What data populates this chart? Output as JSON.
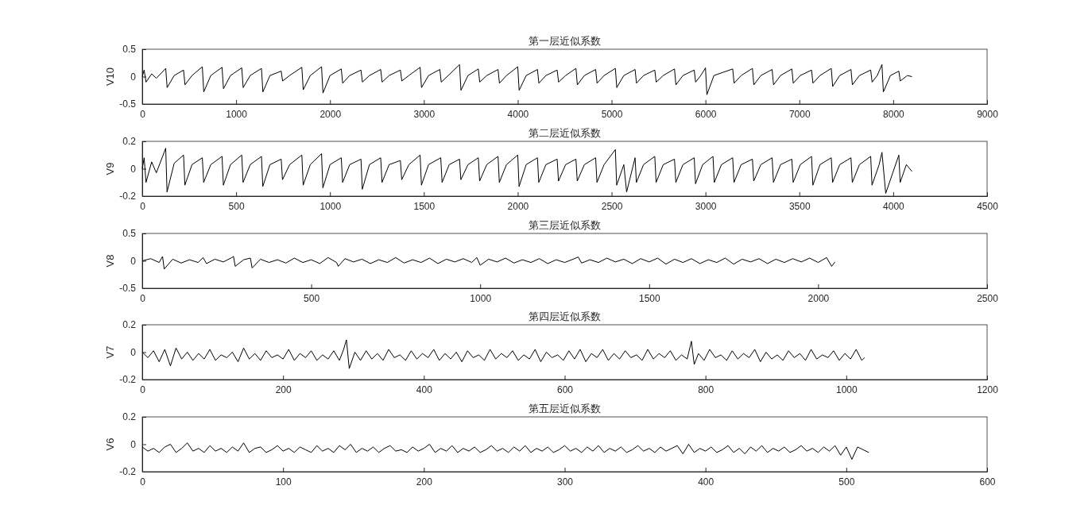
{
  "chart_data": [
    {
      "type": "line",
      "title": "第一层近似系数",
      "ylabel": "V10",
      "xlim": [
        0,
        9000
      ],
      "xticks": [
        0,
        1000,
        2000,
        3000,
        4000,
        5000,
        6000,
        7000,
        8000,
        9000
      ],
      "ylim": [
        -0.5,
        0.5
      ],
      "yticks": [
        -0.5,
        0,
        0.5
      ],
      "grid": false,
      "marker": "none",
      "line_style": "solid",
      "x": [
        0,
        20,
        40,
        100,
        150,
        250,
        265,
        340,
        440,
        455,
        530,
        640,
        655,
        730,
        850,
        865,
        940,
        1060,
        1075,
        1150,
        1270,
        1285,
        1360,
        1480,
        1495,
        1570,
        1700,
        1715,
        1790,
        1910,
        1925,
        2000,
        2120,
        2135,
        2210,
        2330,
        2345,
        2420,
        2540,
        2555,
        2630,
        2750,
        2765,
        2840,
        2960,
        2975,
        3050,
        3170,
        3185,
        3260,
        3380,
        3395,
        3470,
        3580,
        3595,
        3670,
        3790,
        3805,
        3880,
        4000,
        4015,
        4090,
        4210,
        4225,
        4300,
        4420,
        4435,
        4510,
        4620,
        4635,
        4710,
        4830,
        4845,
        4920,
        5040,
        5055,
        5130,
        5250,
        5265,
        5340,
        5460,
        5475,
        5550,
        5670,
        5685,
        5760,
        5880,
        5895,
        5950,
        6000,
        6015,
        6090,
        6290,
        6305,
        6380,
        6500,
        6515,
        6590,
        6710,
        6725,
        6800,
        6920,
        6935,
        7010,
        7130,
        7145,
        7220,
        7340,
        7355,
        7430,
        7550,
        7565,
        7640,
        7760,
        7775,
        7830,
        7880,
        7895,
        7970,
        8060,
        8075,
        8150,
        8200
      ],
      "series": [
        {
          "color": "#000000",
          "values": [
            0,
            0.12,
            -0.1,
            0.05,
            -0.03,
            0.15,
            -0.2,
            0.02,
            0.12,
            -0.15,
            0.02,
            0.18,
            -0.28,
            0.02,
            0.17,
            -0.22,
            0.02,
            0.16,
            -0.2,
            0.02,
            0.15,
            -0.28,
            0.02,
            0.1,
            -0.08,
            0.02,
            0.17,
            -0.24,
            0.02,
            0.18,
            -0.3,
            0.02,
            0.14,
            -0.12,
            0.02,
            0.12,
            -0.1,
            0.02,
            0.13,
            -0.1,
            0.02,
            0.12,
            -0.08,
            0.02,
            0.17,
            -0.2,
            0.02,
            0.13,
            -0.1,
            0.02,
            0.22,
            -0.25,
            0.02,
            0.14,
            -0.1,
            0.02,
            0.13,
            -0.12,
            0.02,
            0.18,
            -0.25,
            0.02,
            0.13,
            -0.12,
            0.02,
            0.12,
            -0.1,
            0.02,
            0.15,
            -0.15,
            0.02,
            0.13,
            -0.12,
            0.02,
            0.15,
            -0.2,
            0.02,
            0.13,
            -0.12,
            0.02,
            0.12,
            -0.1,
            0.02,
            0.14,
            -0.15,
            0.02,
            0.12,
            -0.1,
            0.02,
            0.16,
            -0.33,
            0.02,
            0.14,
            -0.12,
            0.02,
            0.15,
            -0.15,
            0.02,
            0.13,
            -0.15,
            0.02,
            0.14,
            -0.12,
            0.02,
            0.12,
            -0.12,
            0.02,
            0.15,
            -0.18,
            0.02,
            0.13,
            -0.15,
            0.02,
            0.12,
            -0.1,
            0.02,
            0.22,
            -0.28,
            0.02,
            0.1,
            -0.08,
            0.02,
            0
          ]
        }
      ]
    },
    {
      "type": "line",
      "title": "第二层近似系数",
      "ylabel": "V9",
      "xlim": [
        0,
        4500
      ],
      "xticks": [
        0,
        500,
        1000,
        1500,
        2000,
        2500,
        3000,
        3500,
        4000,
        4500
      ],
      "ylim": [
        -0.2,
        0.2
      ],
      "yticks": [
        -0.2,
        0,
        0.2
      ],
      "grid": false,
      "marker": "none",
      "line_style": "solid",
      "x": [
        0,
        10,
        20,
        50,
        75,
        125,
        132,
        170,
        220,
        227,
        265,
        320,
        327,
        365,
        425,
        432,
        470,
        530,
        537,
        575,
        635,
        642,
        680,
        740,
        747,
        785,
        850,
        857,
        895,
        955,
        962,
        1000,
        1060,
        1067,
        1105,
        1165,
        1172,
        1210,
        1270,
        1277,
        1315,
        1375,
        1382,
        1420,
        1480,
        1487,
        1525,
        1590,
        1597,
        1635,
        1690,
        1697,
        1735,
        1790,
        1797,
        1835,
        1895,
        1902,
        1940,
        2000,
        2007,
        2045,
        2105,
        2112,
        2150,
        2210,
        2217,
        2255,
        2310,
        2317,
        2355,
        2415,
        2422,
        2460,
        2520,
        2527,
        2565,
        2580,
        2625,
        2632,
        2670,
        2730,
        2737,
        2775,
        2835,
        2842,
        2880,
        2940,
        2947,
        2985,
        3040,
        3047,
        3085,
        3145,
        3152,
        3190,
        3250,
        3257,
        3295,
        3355,
        3362,
        3400,
        3460,
        3467,
        3505,
        3565,
        3572,
        3610,
        3670,
        3677,
        3715,
        3775,
        3782,
        3820,
        3880,
        3887,
        3925,
        3940,
        3960,
        4030,
        4037,
        4070,
        4100
      ],
      "series": [
        {
          "color": "#000000",
          "values": [
            0,
            0.08,
            -0.1,
            0.05,
            -0.03,
            0.15,
            -0.17,
            0.04,
            0.1,
            -0.12,
            0.03,
            0.08,
            -0.1,
            0.03,
            0.09,
            -0.12,
            0.03,
            0.1,
            -0.1,
            0.03,
            0.09,
            -0.13,
            0.03,
            0.07,
            -0.08,
            0.03,
            0.1,
            -0.12,
            0.03,
            0.11,
            -0.14,
            0.03,
            0.08,
            -0.1,
            0.03,
            0.07,
            -0.15,
            0.03,
            0.08,
            -0.1,
            0.03,
            0.06,
            -0.08,
            0.03,
            0.1,
            -0.12,
            0.03,
            0.08,
            -0.1,
            0.03,
            0.07,
            -0.08,
            0.03,
            0.08,
            -0.09,
            0.03,
            0.09,
            -0.1,
            0.03,
            0.1,
            -0.13,
            0.03,
            0.08,
            -0.1,
            0.03,
            0.07,
            -0.09,
            0.03,
            0.07,
            -0.09,
            0.03,
            0.08,
            -0.1,
            0.03,
            0.14,
            -0.12,
            0.03,
            -0.17,
            0.08,
            -0.1,
            0.03,
            0.09,
            -0.1,
            0.03,
            0.07,
            -0.1,
            0.03,
            0.08,
            -0.11,
            0.03,
            0.09,
            -0.1,
            0.03,
            0.08,
            -0.1,
            0.03,
            0.07,
            -0.09,
            0.03,
            0.08,
            -0.1,
            0.03,
            0.07,
            -0.1,
            0.03,
            0.09,
            -0.12,
            0.03,
            0.08,
            -0.1,
            0.03,
            0.08,
            -0.1,
            0.03,
            0.09,
            -0.12,
            0.03,
            0.12,
            -0.18,
            0.1,
            -0.1,
            0.03,
            -0.02
          ]
        }
      ]
    },
    {
      "type": "line",
      "title": "第三层近似系数",
      "ylabel": "V8",
      "xlim": [
        0,
        2500
      ],
      "xticks": [
        0,
        500,
        1000,
        1500,
        2000,
        2500
      ],
      "ylim": [
        -0.5,
        0.5
      ],
      "yticks": [
        -0.5,
        0,
        0.5
      ],
      "grid": false,
      "marker": "none",
      "line_style": "solid",
      "x": [
        0,
        25,
        50,
        60,
        65,
        90,
        115,
        140,
        165,
        180,
        190,
        215,
        240,
        265,
        270,
        275,
        300,
        320,
        325,
        350,
        375,
        400,
        425,
        450,
        475,
        500,
        525,
        550,
        575,
        580,
        600,
        625,
        650,
        675,
        700,
        725,
        750,
        775,
        800,
        825,
        850,
        875,
        900,
        925,
        950,
        975,
        990,
        1000,
        1025,
        1050,
        1075,
        1100,
        1125,
        1150,
        1175,
        1200,
        1225,
        1250,
        1275,
        1290,
        1300,
        1325,
        1350,
        1375,
        1400,
        1425,
        1450,
        1475,
        1500,
        1525,
        1550,
        1575,
        1600,
        1625,
        1650,
        1675,
        1700,
        1725,
        1750,
        1775,
        1800,
        1825,
        1850,
        1875,
        1900,
        1925,
        1950,
        1975,
        2000,
        2025,
        2040,
        2050
      ],
      "series": [
        {
          "color": "#000000",
          "values": [
            0,
            0.04,
            -0.03,
            0.08,
            -0.15,
            0.03,
            -0.04,
            0.02,
            -0.03,
            0.06,
            -0.05,
            0.03,
            -0.02,
            0.06,
            0.08,
            -0.1,
            0.02,
            0.05,
            -0.13,
            0.03,
            -0.03,
            0.02,
            -0.04,
            0.05,
            -0.03,
            0.02,
            -0.05,
            0.06,
            -0.03,
            -0.1,
            0.04,
            -0.02,
            0.03,
            -0.05,
            0.02,
            -0.03,
            0.06,
            -0.04,
            0.02,
            -0.03,
            0.05,
            -0.05,
            0.03,
            -0.02,
            0.04,
            -0.03,
            0.06,
            -0.08,
            0.03,
            -0.02,
            0.05,
            -0.04,
            0.02,
            -0.03,
            0.04,
            -0.05,
            0.02,
            -0.03,
            0.03,
            0.07,
            -0.04,
            0.02,
            -0.03,
            0.05,
            -0.02,
            0.03,
            -0.05,
            0.04,
            -0.02,
            0.05,
            -0.06,
            0.03,
            -0.03,
            0.04,
            -0.05,
            0.02,
            -0.03,
            0.05,
            -0.06,
            0.03,
            -0.02,
            0.04,
            -0.05,
            0.03,
            -0.03,
            0.04,
            -0.02,
            0.05,
            -0.03,
            0.06,
            -0.1,
            -0.02
          ]
        }
      ]
    },
    {
      "type": "line",
      "title": "第四层近似系数",
      "ylabel": "V7",
      "xlim": [
        0,
        1200
      ],
      "xticks": [
        0,
        200,
        400,
        600,
        800,
        1000,
        1200
      ],
      "ylim": [
        -0.2,
        0.2
      ],
      "yticks": [
        -0.2,
        0,
        0.2
      ],
      "grid": false,
      "marker": "none",
      "line_style": "solid",
      "x": [
        0,
        8,
        16,
        24,
        32,
        40,
        48,
        56,
        64,
        72,
        80,
        88,
        96,
        104,
        112,
        120,
        128,
        136,
        144,
        152,
        160,
        168,
        176,
        184,
        192,
        200,
        208,
        216,
        224,
        232,
        240,
        248,
        256,
        264,
        272,
        280,
        286,
        290,
        294,
        302,
        310,
        318,
        326,
        334,
        342,
        350,
        358,
        366,
        374,
        382,
        390,
        398,
        406,
        414,
        422,
        430,
        438,
        446,
        454,
        462,
        470,
        478,
        486,
        494,
        502,
        510,
        518,
        526,
        534,
        542,
        550,
        558,
        566,
        574,
        582,
        590,
        598,
        606,
        614,
        622,
        630,
        638,
        646,
        654,
        662,
        670,
        678,
        686,
        694,
        702,
        710,
        718,
        726,
        734,
        742,
        750,
        758,
        766,
        774,
        780,
        784,
        790,
        798,
        806,
        814,
        822,
        830,
        838,
        846,
        854,
        862,
        870,
        878,
        886,
        894,
        902,
        910,
        918,
        926,
        934,
        942,
        950,
        958,
        966,
        974,
        982,
        990,
        998,
        1006,
        1014,
        1022,
        1026
      ],
      "series": [
        {
          "color": "#000000",
          "values": [
            0,
            -0.04,
            0.01,
            -0.07,
            0.02,
            -0.1,
            0.03,
            -0.05,
            0.0,
            -0.06,
            -0.01,
            -0.05,
            0.02,
            -0.06,
            -0.02,
            -0.04,
            0.0,
            -0.07,
            0.03,
            -0.05,
            -0.01,
            -0.06,
            0.01,
            -0.04,
            -0.02,
            -0.05,
            0.02,
            -0.06,
            -0.01,
            -0.04,
            0.01,
            -0.06,
            -0.02,
            -0.05,
            0.01,
            -0.06,
            0.02,
            0.09,
            -0.12,
            0.0,
            -0.06,
            0.01,
            -0.05,
            -0.01,
            -0.06,
            0.02,
            -0.04,
            -0.02,
            -0.06,
            0.01,
            -0.05,
            -0.01,
            -0.04,
            0.02,
            -0.06,
            -0.01,
            -0.05,
            0.0,
            -0.07,
            0.01,
            -0.04,
            -0.02,
            -0.06,
            0.02,
            -0.05,
            -0.01,
            -0.04,
            0.01,
            -0.06,
            -0.02,
            -0.05,
            0.02,
            -0.07,
            0.0,
            -0.04,
            -0.02,
            -0.06,
            0.01,
            -0.05,
            0.02,
            -0.07,
            -0.01,
            -0.04,
            0.02,
            -0.06,
            -0.01,
            -0.05,
            0.01,
            -0.04,
            -0.02,
            -0.06,
            0.02,
            -0.05,
            -0.01,
            -0.04,
            0.01,
            -0.06,
            -0.02,
            -0.05,
            0.08,
            -0.09,
            -0.01,
            -0.06,
            0.02,
            -0.04,
            -0.02,
            -0.06,
            0.01,
            -0.05,
            -0.01,
            -0.04,
            0.02,
            -0.07,
            0.0,
            -0.05,
            -0.02,
            -0.06,
            0.01,
            -0.04,
            -0.01,
            -0.06,
            0.02,
            -0.05,
            -0.02,
            -0.04,
            0.01,
            -0.06,
            -0.01,
            -0.05,
            0.02,
            -0.06,
            -0.04
          ]
        }
      ]
    },
    {
      "type": "line",
      "title": "第五层近似系数",
      "ylabel": "V6",
      "xlim": [
        0,
        600
      ],
      "xticks": [
        0,
        100,
        200,
        300,
        400,
        500,
        600
      ],
      "ylim": [
        -0.2,
        0.2
      ],
      "yticks": [
        -0.2,
        0,
        0.2
      ],
      "grid": false,
      "marker": "none",
      "line_style": "solid",
      "x": [
        0,
        4,
        8,
        12,
        16,
        20,
        24,
        28,
        32,
        36,
        40,
        44,
        48,
        52,
        56,
        60,
        64,
        68,
        72,
        76,
        80,
        84,
        88,
        92,
        96,
        100,
        104,
        108,
        112,
        116,
        120,
        124,
        128,
        132,
        136,
        140,
        144,
        148,
        152,
        156,
        160,
        164,
        168,
        172,
        176,
        180,
        184,
        188,
        192,
        196,
        200,
        204,
        208,
        212,
        216,
        220,
        224,
        228,
        232,
        236,
        240,
        244,
        248,
        252,
        256,
        260,
        264,
        268,
        272,
        276,
        280,
        284,
        288,
        292,
        296,
        300,
        304,
        308,
        312,
        316,
        320,
        324,
        328,
        332,
        336,
        340,
        344,
        348,
        352,
        356,
        360,
        364,
        368,
        372,
        376,
        380,
        384,
        388,
        392,
        396,
        400,
        404,
        408,
        412,
        416,
        420,
        424,
        428,
        432,
        436,
        440,
        444,
        448,
        452,
        456,
        460,
        464,
        468,
        472,
        476,
        480,
        484,
        488,
        492,
        496,
        500,
        504,
        508,
        512,
        516
      ],
      "series": [
        {
          "color": "#000000",
          "values": [
            -0.02,
            -0.05,
            -0.03,
            -0.06,
            -0.02,
            0.0,
            -0.06,
            -0.03,
            0.01,
            -0.05,
            -0.03,
            -0.06,
            -0.01,
            -0.05,
            -0.03,
            -0.06,
            -0.02,
            -0.05,
            0.01,
            -0.06,
            -0.03,
            -0.02,
            -0.06,
            -0.04,
            -0.01,
            -0.05,
            -0.03,
            -0.06,
            -0.02,
            -0.04,
            -0.06,
            -0.01,
            -0.05,
            -0.03,
            -0.06,
            -0.01,
            -0.04,
            0.0,
            -0.06,
            -0.03,
            -0.05,
            -0.02,
            -0.06,
            -0.03,
            -0.01,
            -0.05,
            -0.04,
            -0.06,
            -0.02,
            -0.05,
            -0.03,
            0.0,
            -0.06,
            -0.03,
            -0.05,
            -0.01,
            -0.06,
            -0.03,
            -0.05,
            -0.02,
            -0.06,
            -0.04,
            -0.01,
            -0.05,
            -0.03,
            -0.06,
            -0.02,
            -0.05,
            -0.01,
            -0.06,
            -0.03,
            -0.05,
            -0.02,
            -0.06,
            -0.04,
            -0.01,
            -0.05,
            -0.03,
            -0.06,
            -0.02,
            -0.05,
            -0.01,
            -0.06,
            -0.03,
            -0.05,
            -0.02,
            -0.06,
            -0.04,
            -0.01,
            -0.05,
            -0.03,
            -0.06,
            -0.02,
            -0.05,
            -0.03,
            -0.01,
            -0.07,
            0.0,
            -0.06,
            -0.03,
            -0.05,
            -0.02,
            -0.06,
            -0.04,
            -0.01,
            -0.06,
            -0.03,
            -0.07,
            -0.02,
            -0.05,
            -0.01,
            -0.06,
            -0.03,
            -0.05,
            -0.02,
            -0.06,
            -0.04,
            -0.01,
            -0.05,
            -0.03,
            -0.06,
            -0.02,
            -0.05,
            -0.01,
            -0.08,
            -0.02,
            -0.11,
            -0.02,
            -0.04,
            -0.06
          ]
        }
      ]
    }
  ]
}
